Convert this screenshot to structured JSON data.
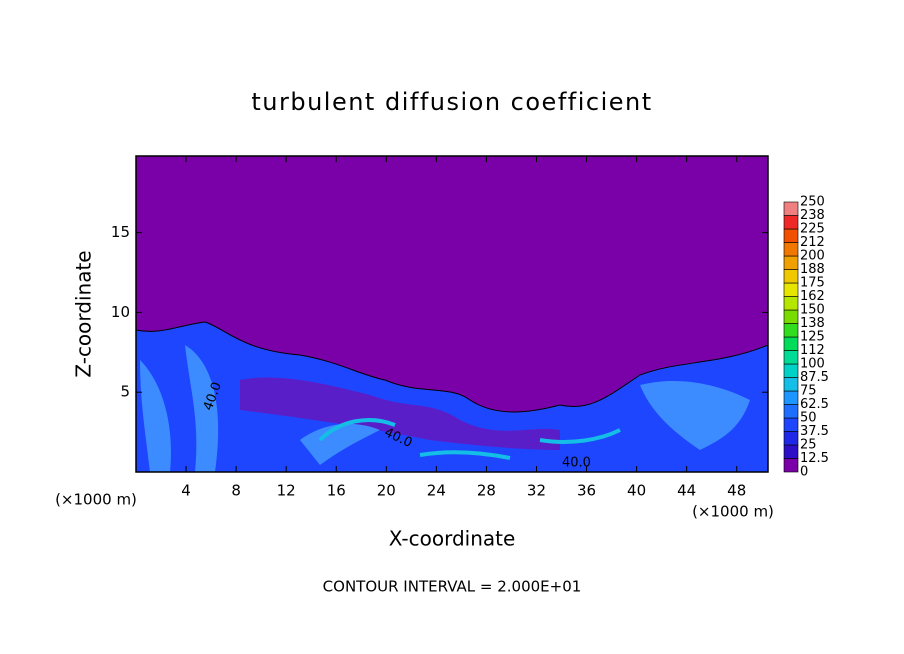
{
  "chart_data": {
    "type": "contour",
    "title": "turbulent diffusion coefficient",
    "x_label": "X-coordinate",
    "y_label": "Z-coordinate",
    "x_unit_left": "(×1000 m)",
    "x_unit_right": "(×1000 m)",
    "footnote": "CONTOUR INTERVAL = 2.000E+01",
    "contour_labels": [
      "40.0",
      "40.0",
      "40.0"
    ],
    "xlim": [
      0,
      50.5
    ],
    "ylim": [
      0,
      19.8
    ],
    "xticks": [
      4,
      8,
      12,
      16,
      20,
      24,
      28,
      32,
      36,
      40,
      44,
      48
    ],
    "yticks": [
      5,
      10,
      15
    ],
    "colorbar": {
      "levels": [
        0,
        12.5,
        25,
        37.5,
        50,
        62.5,
        75,
        87.5,
        100,
        112,
        125,
        138,
        150,
        162,
        175,
        188,
        200,
        212,
        225,
        238,
        250
      ],
      "colors": [
        "#7a00a8",
        "#2d0fc8",
        "#1e28e6",
        "#1e46ff",
        "#1e6eff",
        "#1e96ff",
        "#14bee6",
        "#00d2c8",
        "#00dc96",
        "#00dc5a",
        "#32dc1e",
        "#78dc00",
        "#b4e600",
        "#e6e600",
        "#f0c800",
        "#f0a000",
        "#f07800",
        "#f05000",
        "#f02828",
        "#f08080"
      ]
    }
  }
}
